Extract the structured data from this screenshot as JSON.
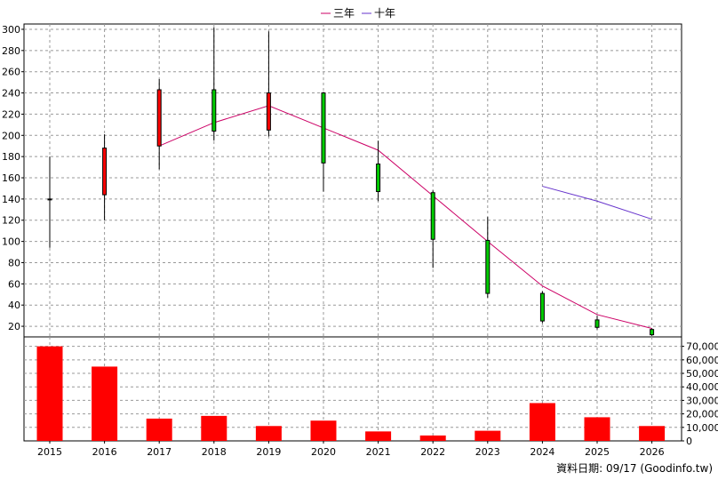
{
  "legend": {
    "three_year": "三年",
    "ten_year": "十年"
  },
  "footer": {
    "label": "資料日期:",
    "date": "09/17",
    "source": "(Goodinfo.tw)"
  },
  "colors": {
    "up": "#ff0000",
    "down": "#00cc00",
    "ma3": "#cc0066",
    "ma10": "#6633cc",
    "volume": "#ff0000",
    "grid": "#999999"
  },
  "chart_data": [
    {
      "type": "candlestick",
      "categories": [
        "2015",
        "2016",
        "2017",
        "2018",
        "2019",
        "2020",
        "2021",
        "2022",
        "2023",
        "2024",
        "2025",
        "2026"
      ],
      "ylim": [
        10,
        305
      ],
      "yticks": [
        20,
        40,
        60,
        80,
        100,
        120,
        140,
        160,
        180,
        200,
        220,
        240,
        260,
        280,
        300
      ],
      "grid": true,
      "legend_position": "top-center",
      "candles": [
        {
          "open": 140,
          "close": 140,
          "high": 180,
          "low": 94
        },
        {
          "open": 144,
          "close": 188,
          "high": 201,
          "low": 120
        },
        {
          "open": 190,
          "close": 243,
          "high": 253,
          "low": 168
        },
        {
          "open": 243,
          "close": 204,
          "high": 302,
          "low": 195
        },
        {
          "open": 205,
          "close": 240,
          "high": 298,
          "low": 199
        },
        {
          "open": 240,
          "close": 174,
          "high": 241,
          "low": 147
        },
        {
          "open": 173,
          "close": 147,
          "high": 195,
          "low": 138
        },
        {
          "open": 146,
          "close": 102,
          "high": 148,
          "low": 75
        },
        {
          "open": 101,
          "close": 51,
          "high": 123,
          "low": 47
        },
        {
          "open": 51,
          "close": 25,
          "high": 53,
          "low": 23
        },
        {
          "open": 26,
          "close": 19,
          "high": 30,
          "low": 17
        },
        {
          "open": 17,
          "close": 12,
          "high": 18,
          "low": 11
        }
      ],
      "series": [
        {
          "name": "三年",
          "values": [
            null,
            null,
            190,
            212,
            228,
            207,
            186,
            143,
            100,
            58,
            31,
            18
          ]
        },
        {
          "name": "十年",
          "values": [
            null,
            null,
            null,
            null,
            null,
            null,
            null,
            null,
            null,
            152,
            138,
            121
          ]
        }
      ]
    },
    {
      "type": "bar",
      "categories": [
        "2015",
        "2016",
        "2017",
        "2018",
        "2019",
        "2020",
        "2021",
        "2022",
        "2023",
        "2024",
        "2025",
        "2026"
      ],
      "values": [
        70000,
        55000,
        16500,
        18500,
        11000,
        15000,
        7000,
        4000,
        7500,
        28000,
        17500,
        11000
      ],
      "ylim": [
        0,
        77000
      ],
      "yticks": [
        0,
        10000,
        20000,
        30000,
        40000,
        50000,
        60000,
        70000
      ],
      "ytick_labels": [
        "0",
        "10,000",
        "20,000",
        "30,000",
        "40,000",
        "50,000",
        "60,000",
        "70,000"
      ],
      "grid": true
    }
  ]
}
